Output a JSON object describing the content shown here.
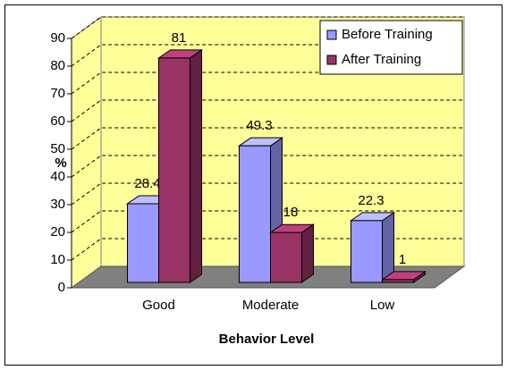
{
  "chart_data": {
    "type": "bar",
    "categories": [
      "Good",
      "Moderate",
      "Low"
    ],
    "series": [
      {
        "name": "Before Training",
        "color": "#9999ff",
        "values": [
          28.4,
          49.3,
          22.3
        ]
      },
      {
        "name": "After Training",
        "color": "#993366",
        "values": [
          81,
          18,
          1
        ]
      }
    ],
    "ylabel": "%",
    "xlabel": "Behavior Level",
    "ylim": [
      0,
      90
    ],
    "yticks": [
      0,
      10,
      20,
      30,
      40,
      50,
      60,
      70,
      80,
      90
    ],
    "grid": true,
    "legend": "top-right"
  }
}
